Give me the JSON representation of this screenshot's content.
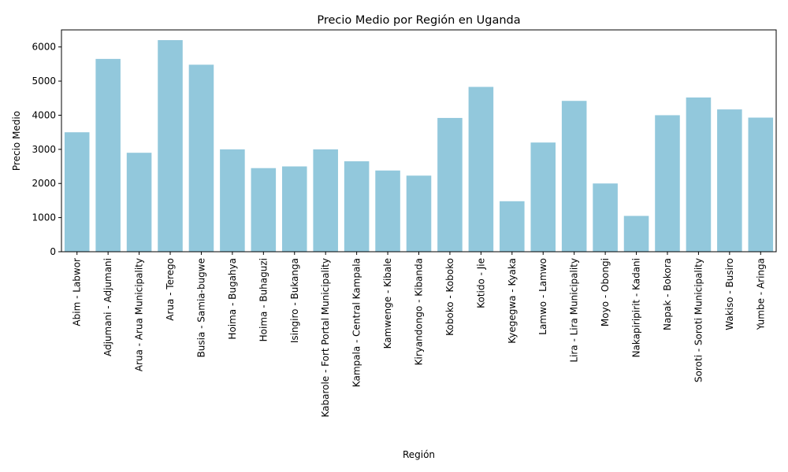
{
  "chart_data": {
    "type": "bar",
    "title": "Precio Medio por Región en Uganda",
    "xlabel": "Región",
    "ylabel": "Precio Medio",
    "ylim": [
      0,
      6500
    ],
    "yticks": [
      0,
      1000,
      2000,
      3000,
      4000,
      5000,
      6000
    ],
    "grid": false,
    "bar_color": "#92c8dc",
    "categories": [
      "Abim - Labwor",
      "Adjumani - Adjumani",
      "Arua - Arua Municipality",
      "Arua - Terego",
      "Busia - Samia-bugwe",
      "Hoima - Bugahya",
      "Hoima - Buhaguzi",
      "Isingiro - Bukanga",
      "Kabarole - Fort Portal Municipality",
      "Kampala - Central Kampala",
      "Kamwenge - Kibale",
      "Kiryandongo - Kibanda",
      "Koboko - Koboko",
      "Kotido - Jie",
      "Kyegegwa - Kyaka",
      "Lamwo - Lamwo",
      "Lira - Lira Municipality",
      "Moyo - Obongi",
      "Nakapiripirit - Kadani",
      "Napak - Bokora",
      "Soroti - Soroti Municipality",
      "Wakiso - Busiro",
      "Yumbe - Aringa"
    ],
    "values": [
      3500,
      5650,
      2900,
      6200,
      5480,
      3000,
      2450,
      2500,
      3000,
      2650,
      2380,
      2230,
      3920,
      4830,
      1480,
      3200,
      4420,
      2000,
      1050,
      4000,
      4520,
      4170,
      3930
    ]
  }
}
